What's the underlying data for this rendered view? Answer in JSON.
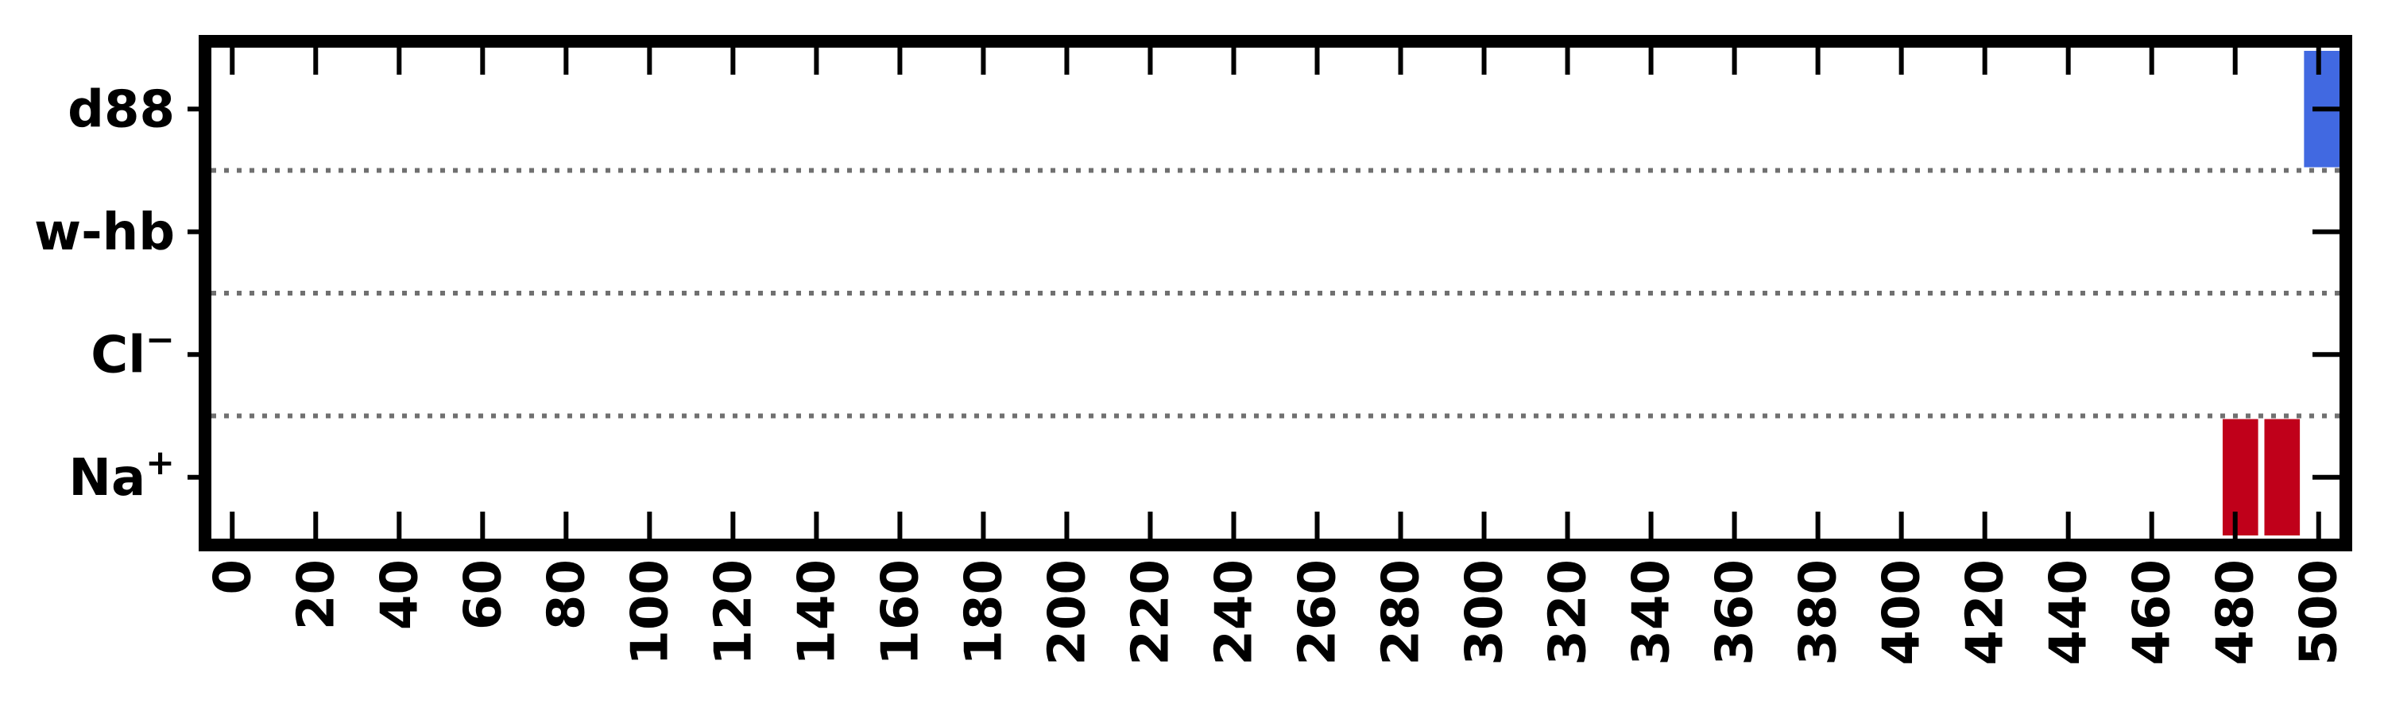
{
  "chart_data": {
    "type": "bar",
    "orientation": "horizontal-event-raster",
    "title": "",
    "xlabel": "",
    "ylabel": "",
    "xlim": [
      -5,
      505
    ],
    "xticks": [
      0,
      20,
      40,
      60,
      80,
      100,
      120,
      140,
      160,
      180,
      200,
      220,
      240,
      260,
      280,
      300,
      320,
      340,
      360,
      380,
      400,
      420,
      440,
      460,
      480,
      500
    ],
    "categories": [
      {
        "key": "d88",
        "label": "d88"
      },
      {
        "key": "w-hb",
        "label": "w-hb"
      },
      {
        "key": "cl",
        "label": "Cl",
        "superscript": "−"
      },
      {
        "key": "na",
        "label": "Na",
        "superscript": "+"
      }
    ],
    "series": [
      {
        "category": "d88",
        "color": "#4169e1",
        "intervals": [
          [
            496.5,
            505
          ]
        ]
      },
      {
        "category": "w-hb",
        "color": "#4169e1",
        "intervals": []
      },
      {
        "category": "cl",
        "color": "#c0001a",
        "intervals": []
      },
      {
        "category": "na",
        "color": "#c0001a",
        "intervals": [
          [
            477,
            485.5
          ],
          [
            487,
            495.5
          ]
        ]
      }
    ],
    "grid": "dotted separators between rows",
    "legend": "none"
  }
}
